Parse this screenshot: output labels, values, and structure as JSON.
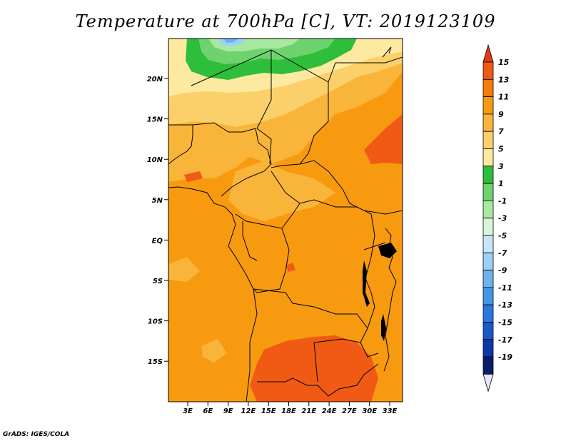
{
  "title": "Temperature at 700hPa [C], VT: 2019123109",
  "credit": "GrADS: IGES/COLA",
  "lat_ticks": [
    "20N",
    "15N",
    "10N",
    "5N",
    "EQ",
    "5S",
    "10S",
    "15S"
  ],
  "lon_ticks": [
    "3E",
    "6E",
    "9E",
    "12E",
    "15E",
    "18E",
    "21E",
    "24E",
    "27E",
    "30E",
    "33E"
  ],
  "colorbar": {
    "labels": [
      "15",
      "13",
      "11",
      "9",
      "7",
      "5",
      "3",
      "1",
      "-1",
      "-3",
      "-5",
      "-7",
      "-9",
      "-11",
      "-13",
      "-15",
      "-17",
      "-19"
    ],
    "colors": [
      "#e03c14",
      "#f05a14",
      "#f57c0f",
      "#f79a10",
      "#f9b43a",
      "#fbd06a",
      "#fde9a0",
      "#2ebe3c",
      "#6ed36e",
      "#a8e8a0",
      "#d8f5d8",
      "#c8e6fa",
      "#9cd0f5",
      "#6cb2ee",
      "#4696e6",
      "#2a78de",
      "#1858c8",
      "#0c38a8",
      "#081c6c",
      "#e6e6ff"
    ]
  }
}
